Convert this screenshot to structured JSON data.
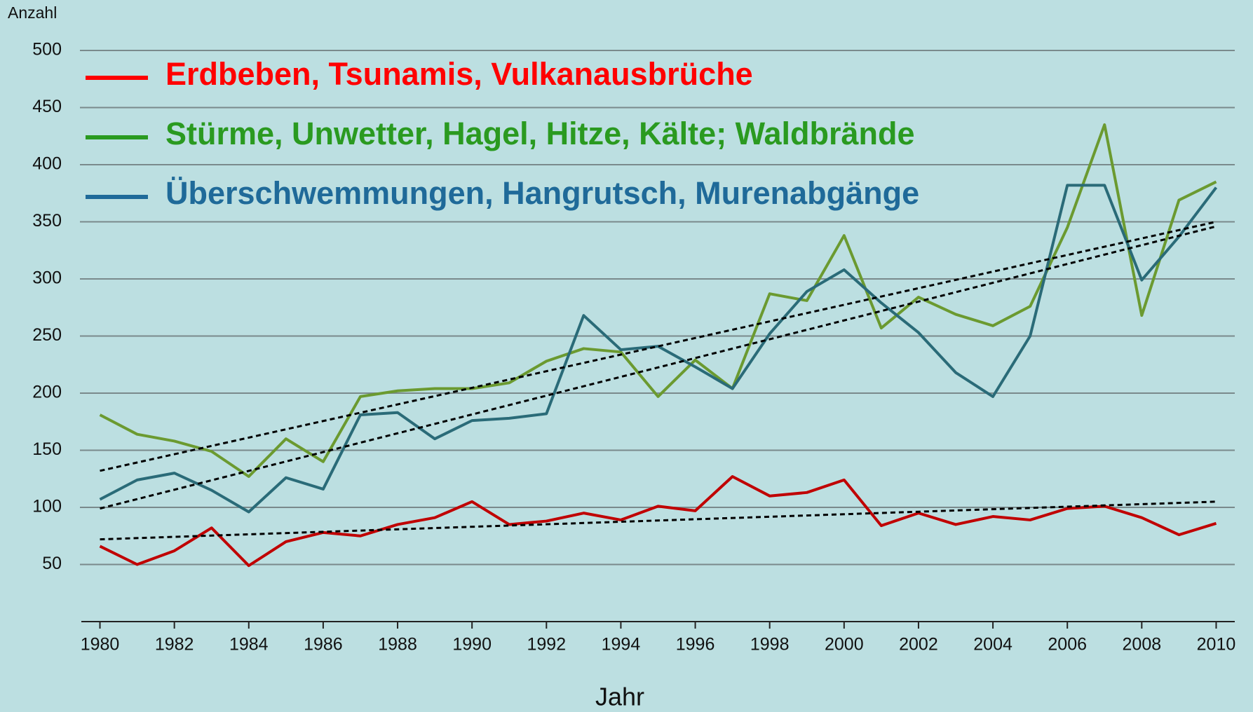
{
  "chart_data": {
    "type": "line",
    "y_label": "Anzahl",
    "x_label": "Jahr",
    "x": [
      1980,
      1981,
      1982,
      1983,
      1984,
      1985,
      1986,
      1987,
      1988,
      1989,
      1990,
      1991,
      1992,
      1993,
      1994,
      1995,
      1996,
      1997,
      1998,
      1999,
      2000,
      2001,
      2002,
      2003,
      2004,
      2005,
      2006,
      2007,
      2008,
      2009,
      2010
    ],
    "xlim": [
      1979.5,
      2010.5
    ],
    "xticks": [
      1980,
      1982,
      1984,
      1986,
      1988,
      1990,
      1992,
      1994,
      1996,
      1998,
      2000,
      2002,
      2004,
      2006,
      2008,
      2010
    ],
    "ylim": [
      0,
      500
    ],
    "yticks": [
      50,
      100,
      150,
      200,
      250,
      300,
      350,
      400,
      450,
      500
    ],
    "grid": true,
    "trend_x": [
      1980,
      2010
    ],
    "series": [
      {
        "name": "Erdbeben, Tsunamis, Vulkanausbrüche",
        "color": "#c00000",
        "legend_color": "#ff0000",
        "values": [
          66,
          50,
          62,
          82,
          49,
          70,
          78,
          75,
          85,
          91,
          105,
          85,
          88,
          95,
          89,
          101,
          97,
          127,
          110,
          113,
          124,
          84,
          95,
          85,
          92,
          89,
          99,
          101,
          91,
          76,
          86
        ],
        "trend": [
          72,
          105
        ]
      },
      {
        "name": "Stürme, Unwetter, Hagel, Hitze, Kälte; Waldbrände",
        "color": "#6b9a30",
        "legend_color": "#2a9a20",
        "values": [
          181,
          164,
          158,
          149,
          127,
          160,
          140,
          197,
          202,
          204,
          204,
          209,
          228,
          239,
          236,
          197,
          229,
          204,
          287,
          281,
          338,
          257,
          284,
          269,
          259,
          276,
          345,
          435,
          268,
          369,
          385
        ],
        "trend": [
          132,
          350
        ]
      },
      {
        "name": "Überschwemmungen, Hangrutsch, Murenabgänge",
        "color": "#2a6b78",
        "legend_color": "#1f6a99",
        "values": [
          107,
          124,
          130,
          115,
          96,
          126,
          116,
          181,
          183,
          160,
          176,
          178,
          182,
          268,
          238,
          241,
          223,
          204,
          252,
          289,
          308,
          279,
          253,
          218,
          197,
          250,
          382,
          382,
          299,
          337,
          380
        ],
        "trend": [
          99,
          346
        ]
      }
    ]
  }
}
